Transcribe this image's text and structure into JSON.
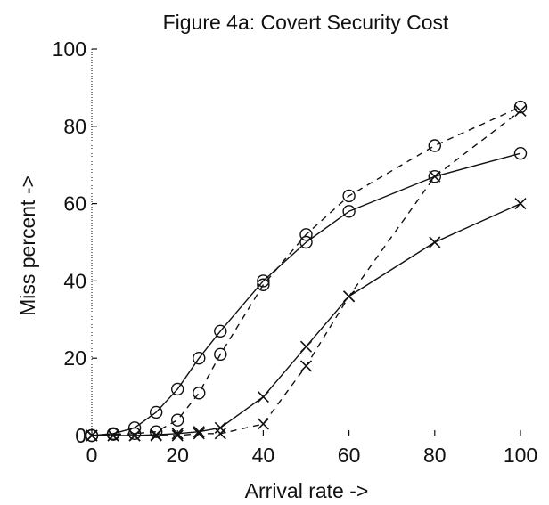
{
  "chart_data": {
    "type": "line",
    "title": "Figure 4a: Covert Security Cost",
    "xlabel": "Arrival rate ->",
    "ylabel": "Miss percent ->",
    "xlim": [
      0,
      100
    ],
    "ylim": [
      0,
      100
    ],
    "xticks": [
      0,
      20,
      40,
      60,
      80,
      100
    ],
    "yticks": [
      0,
      20,
      40,
      60,
      80,
      100
    ],
    "grid": false,
    "x": [
      0,
      5,
      10,
      15,
      20,
      25,
      30,
      40,
      50,
      60,
      80,
      100
    ],
    "series": [
      {
        "marker": "circle",
        "style": "solid",
        "values": [
          0,
          0.5,
          2,
          6,
          12,
          20,
          27,
          40,
          50,
          58,
          67,
          73
        ]
      },
      {
        "marker": "circle",
        "style": "dashed",
        "values": [
          0,
          0.3,
          0.5,
          1,
          4,
          11,
          21,
          39,
          52,
          62,
          75,
          85
        ]
      },
      {
        "marker": "x",
        "style": "solid",
        "values": [
          0,
          0,
          0,
          0.2,
          0.5,
          1,
          2,
          10,
          23,
          36,
          50,
          60
        ]
      },
      {
        "marker": "x",
        "style": "dashed",
        "values": [
          0,
          0,
          0,
          0,
          0,
          0.5,
          0.5,
          3,
          18,
          36,
          67,
          84
        ]
      }
    ],
    "colors": {
      "line": "#111111",
      "background": "#ffffff"
    }
  }
}
